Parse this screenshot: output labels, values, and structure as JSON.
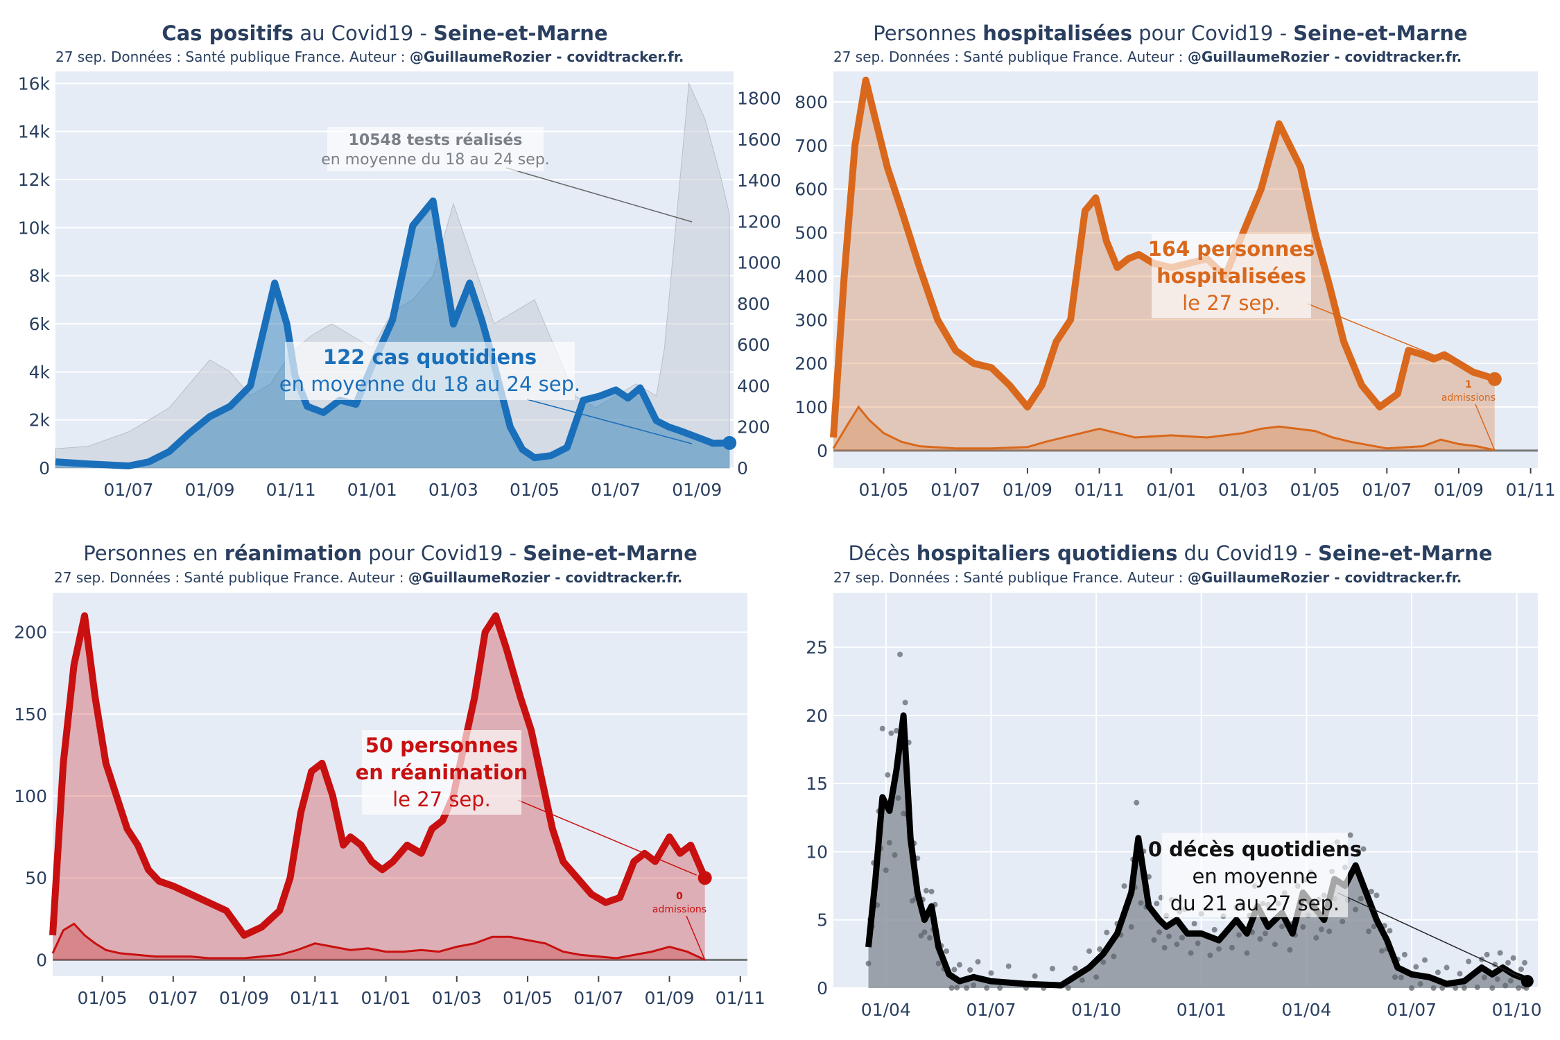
{
  "colors": {
    "plot_bg": "#e5ecf6",
    "grid": "#ffffff",
    "text": "#2a3f5f",
    "cases": "#1f77b4",
    "cases_line": "#1a6fba",
    "tests": "#c8cdd5",
    "hosp": "#d9681c",
    "rea": "#c81010",
    "deces": "#000000",
    "deces_fill": "#8d949c"
  },
  "shared": {
    "subtitle_prefix": "27 sep. Données : Santé publique France. Auteur : ",
    "subtitle_author": "@GuillaumeRozier - covidtracker.fr."
  },
  "chart_data": [
    {
      "id": "cases",
      "type": "area",
      "title": {
        "b1": "Cas positifs",
        "t1": " au Covid19 - ",
        "b2": "Seine-et-Marne"
      },
      "x_ticks": [
        "01/07",
        "01/09",
        "01/11",
        "01/01",
        "01/03",
        "01/05",
        "01/07",
        "01/09"
      ],
      "x_tick_months": [
        1,
        3,
        5,
        7,
        9,
        11,
        13,
        15
      ],
      "x_range_months": [
        -0.8,
        15.9
      ],
      "y_ticks": [
        "0",
        "2k",
        "4k",
        "6k",
        "8k",
        "10k",
        "12k",
        "14k",
        "16k"
      ],
      "y_tick_values": [
        0,
        2000,
        4000,
        6000,
        8000,
        10000,
        12000,
        14000,
        16000
      ],
      "y_range": [
        0,
        16500
      ],
      "y2_ticks": [
        "0",
        "200",
        "400",
        "600",
        "800",
        "1000",
        "1200",
        "1400",
        "1600",
        "1800"
      ],
      "y2_tick_values": [
        0,
        200,
        400,
        600,
        800,
        1000,
        1200,
        1400,
        1600,
        1800
      ],
      "y2_range": [
        0,
        1930
      ],
      "series": [
        {
          "name": "Cas quotidiens (moyenne 7 j)",
          "axis": "y2",
          "x": [
            -0.8,
            0,
            1,
            1.5,
            2,
            2.5,
            3,
            3.5,
            4,
            4.3,
            4.6,
            4.9,
            5.1,
            5.4,
            5.8,
            6.2,
            6.6,
            7.0,
            7.5,
            8.0,
            8.5,
            9.0,
            9.4,
            9.7,
            9.9,
            10.1,
            10.4,
            10.7,
            11.0,
            11.4,
            11.8,
            12.2,
            12.6,
            13.0,
            13.3,
            13.6,
            14.0,
            14.3,
            14.6,
            15.0,
            15.4,
            15.8
          ],
          "y": [
            30,
            20,
            10,
            30,
            80,
            170,
            250,
            300,
            400,
            650,
            900,
            700,
            450,
            300,
            270,
            330,
            310,
            500,
            720,
            1180,
            1300,
            700,
            900,
            720,
            580,
            430,
            200,
            90,
            50,
            60,
            100,
            330,
            350,
            380,
            340,
            390,
            230,
            200,
            180,
            150,
            120,
            122
          ]
        },
        {
          "name": "Tests réalisés",
          "axis": "y",
          "x": [
            -0.8,
            0,
            1,
            1.5,
            2,
            2.5,
            3,
            3.5,
            4,
            4.5,
            5,
            5.5,
            6,
            6.5,
            7,
            7.5,
            8,
            8.5,
            9,
            9.5,
            10,
            10.5,
            11,
            11.5,
            12,
            12.5,
            13,
            13.5,
            14,
            14.2,
            14.5,
            14.8,
            15.2,
            15.6,
            15.8
          ],
          "y": [
            800,
            900,
            1500,
            2000,
            2500,
            3500,
            4500,
            4000,
            3000,
            3500,
            4800,
            5500,
            6000,
            5500,
            5000,
            6500,
            7000,
            8000,
            11000,
            8500,
            6000,
            6500,
            7000,
            5000,
            3000,
            2500,
            3000,
            3500,
            3000,
            5000,
            10500,
            16000,
            14500,
            12000,
            10548
          ]
        }
      ],
      "annotations": [
        {
          "bold": "10548 tests réalisés",
          "line2": "en moyenne du 18 au 24 sep."
        },
        {
          "bold": "122 cas quotidiens",
          "line2": "en moyenne du 18 au 24 sep."
        }
      ]
    },
    {
      "id": "hosp",
      "type": "area",
      "title": {
        "t0": "Personnes ",
        "b1": "hospitalisées",
        "t1": " pour Covid19 - ",
        "b2": "Seine-et-Marne"
      },
      "x_ticks": [
        "01/05",
        "01/07",
        "01/09",
        "01/11",
        "01/01",
        "01/03",
        "01/05",
        "01/07",
        "01/09",
        "01/11"
      ],
      "x_tick_months": [
        2,
        4,
        6,
        8,
        10,
        12,
        14,
        16,
        18,
        20
      ],
      "x_range_months": [
        0.6,
        20.2
      ],
      "y_ticks": [
        "0",
        "100",
        "200",
        "300",
        "400",
        "500",
        "600",
        "700",
        "800"
      ],
      "y_tick_values": [
        0,
        100,
        200,
        300,
        400,
        500,
        600,
        700,
        800
      ],
      "y_range": [
        -40,
        870
      ],
      "series": [
        {
          "name": "Personnes hospitalisées",
          "x": [
            0.6,
            0.9,
            1.2,
            1.5,
            1.8,
            2.1,
            2.5,
            3.0,
            3.5,
            4.0,
            4.5,
            5.0,
            5.5,
            6.0,
            6.4,
            6.8,
            7.2,
            7.6,
            7.9,
            8.2,
            8.5,
            8.8,
            9.1,
            9.5,
            10.0,
            10.5,
            11.0,
            11.5,
            12.0,
            12.5,
            13.0,
            13.3,
            13.6,
            14.0,
            14.4,
            14.8,
            15.3,
            15.8,
            16.3,
            16.6,
            17.0,
            17.3,
            17.6,
            18.0,
            18.4,
            18.8,
            19.0
          ],
          "y": [
            30,
            400,
            700,
            850,
            750,
            650,
            550,
            420,
            300,
            230,
            200,
            190,
            150,
            100,
            150,
            250,
            300,
            550,
            580,
            480,
            420,
            440,
            450,
            430,
            420,
            430,
            440,
            400,
            500,
            600,
            750,
            700,
            650,
            500,
            380,
            250,
            150,
            100,
            130,
            230,
            220,
            210,
            220,
            200,
            180,
            170,
            164
          ]
        },
        {
          "name": "Admissions",
          "x": [
            0.6,
            1.0,
            1.3,
            1.6,
            2.0,
            2.5,
            3.0,
            4.0,
            5.0,
            6.0,
            6.5,
            7.5,
            8.0,
            8.5,
            9.0,
            10.0,
            11.0,
            12.0,
            12.5,
            13.0,
            13.5,
            14.0,
            14.5,
            15.0,
            16.0,
            17.0,
            17.5,
            18.0,
            18.5,
            19.0
          ],
          "y": [
            5,
            60,
            100,
            70,
            40,
            20,
            10,
            5,
            5,
            8,
            20,
            40,
            50,
            40,
            30,
            35,
            30,
            40,
            50,
            55,
            50,
            45,
            30,
            20,
            5,
            10,
            25,
            15,
            10,
            1
          ]
        }
      ],
      "annotations": [
        {
          "bold1": "164 personnes",
          "bold2": "hospitalisées",
          "line3": "le 27 sep."
        },
        {
          "bold": "1",
          "line2": "admissions"
        }
      ]
    },
    {
      "id": "rea",
      "type": "area",
      "title": {
        "t0": "Personnes en ",
        "b1": "réanimation",
        "t1": " pour Covid19 - ",
        "b2": "Seine-et-Marne"
      },
      "x_ticks": [
        "01/05",
        "01/07",
        "01/09",
        "01/11",
        "01/01",
        "01/03",
        "01/05",
        "01/07",
        "01/09",
        "01/11"
      ],
      "x_tick_months": [
        2,
        4,
        6,
        8,
        10,
        12,
        14,
        16,
        18,
        20
      ],
      "x_range_months": [
        0.6,
        20.2
      ],
      "y_ticks": [
        "0",
        "50",
        "100",
        "150",
        "200"
      ],
      "y_tick_values": [
        0,
        50,
        100,
        150,
        200
      ],
      "y_range": [
        -10,
        224
      ],
      "series": [
        {
          "name": "Personnes en réanimation",
          "x": [
            0.6,
            0.9,
            1.2,
            1.5,
            1.8,
            2.1,
            2.4,
            2.7,
            3.0,
            3.3,
            3.6,
            4.0,
            4.5,
            5.0,
            5.5,
            6.0,
            6.5,
            7.0,
            7.3,
            7.6,
            7.9,
            8.2,
            8.5,
            8.8,
            9.0,
            9.3,
            9.6,
            9.9,
            10.2,
            10.6,
            11.0,
            11.3,
            11.6,
            11.9,
            12.2,
            12.5,
            12.8,
            13.1,
            13.4,
            13.8,
            14.1,
            14.4,
            14.7,
            15.0,
            15.4,
            15.8,
            16.2,
            16.6,
            17.0,
            17.3,
            17.6,
            18.0,
            18.3,
            18.6,
            18.9,
            19.0
          ],
          "y": [
            15,
            120,
            180,
            210,
            160,
            120,
            100,
            80,
            70,
            55,
            48,
            45,
            40,
            35,
            30,
            15,
            20,
            30,
            50,
            90,
            115,
            120,
            100,
            70,
            75,
            70,
            60,
            55,
            60,
            70,
            65,
            80,
            85,
            100,
            130,
            160,
            200,
            210,
            190,
            160,
            140,
            110,
            80,
            60,
            50,
            40,
            35,
            38,
            60,
            65,
            60,
            75,
            65,
            70,
            55,
            50
          ]
        },
        {
          "name": "Admissions",
          "x": [
            0.6,
            0.9,
            1.2,
            1.5,
            1.8,
            2.1,
            2.5,
            3.0,
            3.5,
            4.0,
            4.5,
            5.0,
            5.5,
            6.0,
            6.5,
            7.0,
            7.5,
            8.0,
            8.5,
            9.0,
            9.5,
            10.0,
            10.5,
            11.0,
            11.5,
            12.0,
            12.5,
            13.0,
            13.5,
            14.0,
            14.5,
            15.0,
            15.5,
            16.0,
            16.5,
            17.0,
            17.5,
            18.0,
            18.5,
            19.0
          ],
          "y": [
            4,
            18,
            22,
            15,
            10,
            6,
            4,
            3,
            2,
            2,
            2,
            1,
            1,
            1,
            2,
            3,
            6,
            10,
            8,
            6,
            7,
            5,
            5,
            6,
            5,
            8,
            10,
            14,
            14,
            12,
            10,
            5,
            3,
            2,
            1,
            3,
            5,
            8,
            5,
            0
          ]
        }
      ],
      "annotations": [
        {
          "bold1": "50 personnes",
          "bold2": "en réanimation",
          "line3": "le 27 sep."
        },
        {
          "bold": "0",
          "line2": "admissions"
        }
      ]
    },
    {
      "id": "deces",
      "type": "area",
      "title": {
        "t0": "Décès ",
        "b1": "hospitaliers quotidiens",
        "t1": " du Covid19 - ",
        "b2": "Seine-et-Marne"
      },
      "x_ticks": [
        "01/04",
        "01/07",
        "01/10",
        "01/01",
        "01/04",
        "01/07",
        "01/10"
      ],
      "x_tick_months": [
        1,
        4,
        7,
        10,
        13,
        16,
        19
      ],
      "x_range_months": [
        -0.5,
        19.6
      ],
      "y_ticks": [
        "0",
        "5",
        "10",
        "15",
        "20",
        "25"
      ],
      "y_tick_values": [
        0,
        5,
        10,
        15,
        20,
        25
      ],
      "y_range": [
        0,
        29
      ],
      "series": [
        {
          "name": "Décès quotidiens (moyenne 7 j)",
          "x": [
            0.5,
            0.7,
            0.9,
            1.1,
            1.3,
            1.5,
            1.7,
            1.9,
            2.1,
            2.3,
            2.5,
            2.8,
            3.1,
            3.5,
            4,
            5,
            6,
            6.8,
            7.2,
            7.6,
            8.0,
            8.2,
            8.5,
            8.8,
            9.0,
            9.3,
            9.6,
            10,
            10.5,
            11,
            11.3,
            11.6,
            11.9,
            12.3,
            12.6,
            12.9,
            13.2,
            13.5,
            13.8,
            14.1,
            14.4,
            14.7,
            15,
            15.3,
            15.6,
            16,
            16.5,
            17,
            17.5,
            18,
            18.3,
            18.6,
            18.9,
            19.2,
            19.3
          ],
          "y": [
            3,
            8,
            14,
            13,
            16,
            20,
            11,
            7,
            5,
            6,
            3,
            1,
            0.5,
            0.8,
            0.5,
            0.3,
            0.2,
            1.5,
            2.5,
            4,
            7,
            11,
            6,
            5,
            4.5,
            5,
            4,
            4,
            3.5,
            5,
            4,
            6,
            4.5,
            5.5,
            4,
            7,
            6,
            5,
            8,
            7.5,
            9,
            7,
            5,
            3.5,
            1.5,
            1,
            0.8,
            0.3,
            0.5,
            1.5,
            1,
            1.5,
            1,
            0.7,
            0.5
          ]
        }
      ],
      "annotations": [
        {
          "bold": "0 décès quotidiens",
          "line2": "en moyenne",
          "line3": "du 21 au 27 sep."
        }
      ]
    }
  ]
}
